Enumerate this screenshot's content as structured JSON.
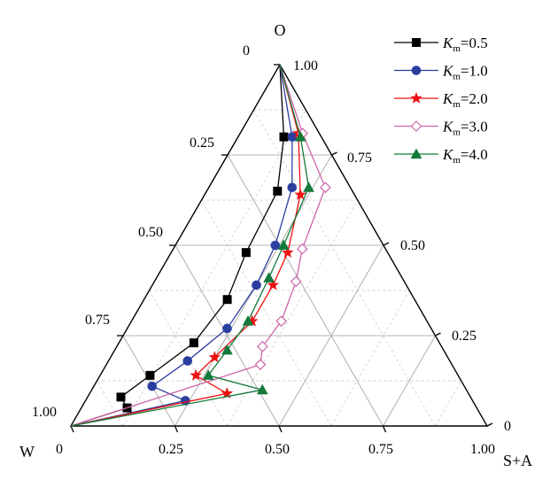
{
  "chart_data": {
    "type": "line",
    "subtype": "ternary",
    "corner_labels": {
      "top": "O",
      "left": "W",
      "right": "S+A"
    },
    "axes": {
      "O": {
        "ticks": [
          "0",
          "0.25",
          "0.50",
          "0.75",
          "1.00"
        ]
      },
      "W": {
        "ticks": [
          "0",
          "0.25",
          "0.50",
          "0.75",
          "1.00"
        ]
      },
      "SA": {
        "ticks": [
          "0",
          "0.25",
          "0.50",
          "0.75",
          "1.00"
        ]
      }
    },
    "grid": true,
    "legend": {
      "placement": "top-right"
    },
    "series": [
      {
        "name": "K_m=0.5",
        "label_main": "K",
        "label_sub": "m",
        "label_val": "=0.5",
        "color": "#000000",
        "marker": "square",
        "fill": true,
        "points": [
          [
            1.0,
            0.0
          ],
          [
            0.8,
            0.11
          ],
          [
            0.65,
            0.17
          ],
          [
            0.48,
            0.18
          ],
          [
            0.35,
            0.2
          ],
          [
            0.23,
            0.18
          ],
          [
            0.14,
            0.12
          ],
          [
            0.08,
            0.08
          ],
          [
            0.05,
            0.11
          ],
          [
            0.0,
            0.0
          ]
        ]
      },
      {
        "name": "K_m=1.0",
        "label_main": "K",
        "label_sub": "m",
        "label_val": "=1.0",
        "color": "#2b3fa0",
        "marker": "circle",
        "fill": true,
        "points": [
          [
            1.0,
            0.0
          ],
          [
            0.8,
            0.13
          ],
          [
            0.66,
            0.2
          ],
          [
            0.5,
            0.24
          ],
          [
            0.39,
            0.25
          ],
          [
            0.27,
            0.24
          ],
          [
            0.18,
            0.19
          ],
          [
            0.11,
            0.14
          ],
          [
            0.07,
            0.24
          ],
          [
            0.0,
            0.0
          ]
        ]
      },
      {
        "name": "K_m=2.0",
        "label_main": "K",
        "label_sub": "m",
        "label_val": "=2.0",
        "color": "#ee1111",
        "marker": "star",
        "fill": true,
        "points": [
          [
            1.0,
            0.0
          ],
          [
            0.81,
            0.14
          ],
          [
            0.64,
            0.23
          ],
          [
            0.48,
            0.28
          ],
          [
            0.39,
            0.29
          ],
          [
            0.29,
            0.29
          ],
          [
            0.19,
            0.25
          ],
          [
            0.14,
            0.23
          ],
          [
            0.09,
            0.33
          ],
          [
            0.0,
            0.0
          ]
        ]
      },
      {
        "name": "K_m=3.0",
        "label_main": "K",
        "label_sub": "m",
        "label_val": "=3.0",
        "color": "#cc66aa",
        "marker": "diamond",
        "fill": false,
        "points": [
          [
            1.0,
            0.0
          ],
          [
            0.81,
            0.15
          ],
          [
            0.66,
            0.28
          ],
          [
            0.49,
            0.31
          ],
          [
            0.4,
            0.34
          ],
          [
            0.29,
            0.36
          ],
          [
            0.22,
            0.35
          ],
          [
            0.17,
            0.37
          ],
          [
            0.0,
            0.0
          ]
        ]
      },
      {
        "name": "K_m=4.0",
        "label_main": "K",
        "label_sub": "m",
        "label_val": "=4.0",
        "color": "#127a3a",
        "marker": "triangle",
        "fill": true,
        "points": [
          [
            1.0,
            0.0
          ],
          [
            0.8,
            0.15
          ],
          [
            0.66,
            0.24
          ],
          [
            0.5,
            0.26
          ],
          [
            0.41,
            0.27
          ],
          [
            0.29,
            0.28
          ],
          [
            0.21,
            0.27
          ],
          [
            0.14,
            0.26
          ],
          [
            0.1,
            0.41
          ],
          [
            0.0,
            0.0
          ]
        ]
      }
    ]
  }
}
